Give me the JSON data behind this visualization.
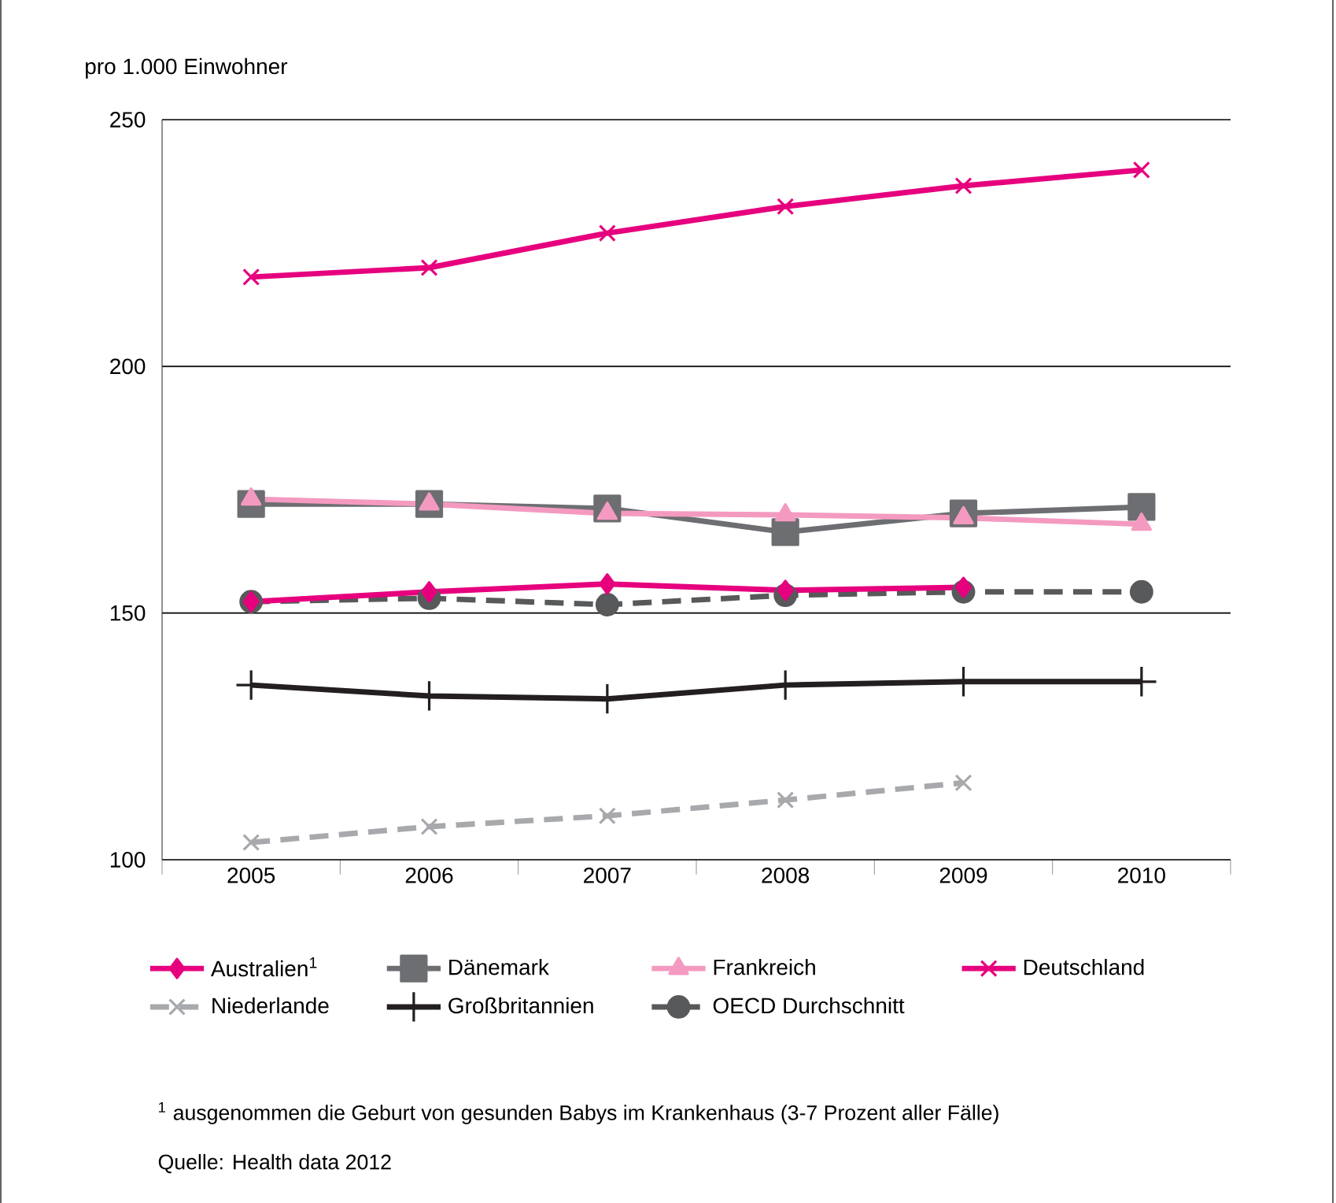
{
  "chart_data": {
    "type": "line",
    "ylabel": "pro 1.000 Einwohner",
    "categories": [
      "2005",
      "2006",
      "2007",
      "2008",
      "2009",
      "2010"
    ],
    "series": [
      {
        "name": "Australien$^{1}$",
        "color": "#e6007e",
        "marker": "diamond",
        "values": [
          152.3,
          154.3,
          155.9,
          154.6,
          155.2,
          null
        ]
      },
      {
        "name": "Dänemark",
        "color": "#6d6e71",
        "marker": "square",
        "values": [
          172.1,
          172.1,
          171.2,
          166.4,
          170.2,
          171.5
        ]
      },
      {
        "name": "Frankreich",
        "color": "#f49ac1",
        "marker": "triangle",
        "values": [
          173.1,
          172.1,
          170.2,
          169.9,
          169.3,
          168.0
        ]
      },
      {
        "name": "Deutschland",
        "color": "#e6007e",
        "marker": "cross",
        "values": [
          218.1,
          220.0,
          227.0,
          232.4,
          236.6,
          239.8
        ]
      },
      {
        "name": "Niederlande",
        "color": "#a7a9ac",
        "marker": "cross",
        "line_style": "dashed",
        "values": [
          103.5,
          106.7,
          108.9,
          112.1,
          115.6,
          null
        ]
      },
      {
        "name": "Großbritannien",
        "color": "#231f20",
        "marker": "plus",
        "values": [
          135.4,
          133.2,
          132.6,
          135.4,
          136.1,
          136.1
        ]
      },
      {
        "name": "OECD  Durchschnitt",
        "color": "#58595b",
        "marker": "circle",
        "line_style": "dashed",
        "values": [
          152.3,
          153.0,
          151.7,
          153.6,
          154.3,
          154.3
        ]
      }
    ],
    "ylim": [
      100,
      250
    ],
    "yticks": [
      100,
      150,
      200,
      250
    ],
    "grid": "y",
    "legend": "bottom",
    "annotations": [
      "$^{1}$ ausgenommen die Geburt von gesunden Babys im Krankenhaus (3-7 Prozent aller Fälle)",
      "Quelle: Health data 2012"
    ]
  }
}
